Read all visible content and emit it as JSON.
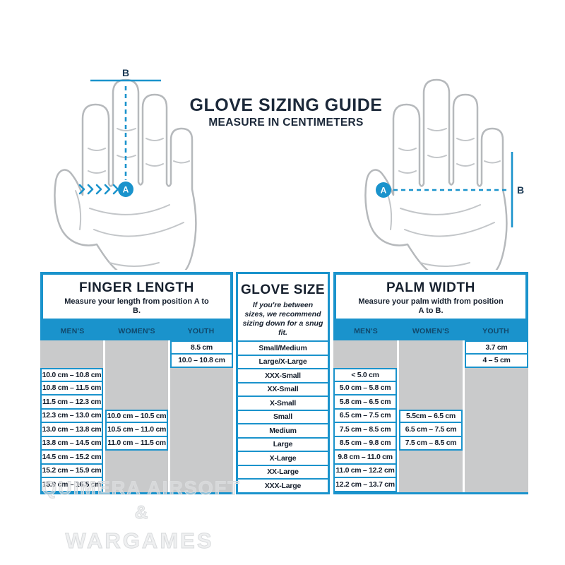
{
  "header": {
    "title": "GLOVE SIZING GUIDE",
    "subtitle": "MEASURE IN CENTIMETERS"
  },
  "diagrams": {
    "left": {
      "point_a": "A",
      "point_b": "B"
    },
    "right": {
      "point_a": "A",
      "point_b": "B"
    }
  },
  "tables": {
    "finger_length": {
      "title": "FINGER LENGTH",
      "subtitle": "Measure your length from position A to B.",
      "columns": [
        "MEN'S",
        "WOMEN'S",
        "YOUTH"
      ],
      "rows": [
        [
          "",
          "",
          "8.5 cm"
        ],
        [
          "",
          "",
          "10.0 – 10.8 cm"
        ],
        [
          "10.0 cm – 10.8 cm",
          "",
          ""
        ],
        [
          "10.8 cm – 11.5 cm",
          "",
          ""
        ],
        [
          "11.5 cm – 12.3 cm",
          "",
          ""
        ],
        [
          "12.3 cm – 13.0 cm",
          "10.0 cm – 10.5 cm",
          ""
        ],
        [
          "13.0 cm – 13.8 cm",
          "10.5 cm – 11.0 cm",
          ""
        ],
        [
          "13.8 cm – 14.5 cm",
          "11.0 cm – 11.5 cm",
          ""
        ],
        [
          "14.5 cm – 15.2 cm",
          "",
          ""
        ],
        [
          "15.2 cm – 15.9 cm",
          "",
          ""
        ],
        [
          "15.9 cm – 16.5 cm",
          "",
          ""
        ]
      ]
    },
    "glove_size": {
      "title": "GLOVE SIZE",
      "subtitle": "If you're between sizes, we recommend sizing down for a snug fit.",
      "sizes": [
        "Small/Medium",
        "Large/X-Large",
        "XXX-Small",
        "XX-Small",
        "X-Small",
        "Small",
        "Medium",
        "Large",
        "X-Large",
        "XX-Large",
        "XXX-Large"
      ]
    },
    "palm_width": {
      "title": "PALM WIDTH",
      "subtitle": "Measure your palm width from position A to B.",
      "columns": [
        "MEN'S",
        "WOMEN'S",
        "YOUTH"
      ],
      "rows": [
        [
          "",
          "",
          "3.7 cm"
        ],
        [
          "",
          "",
          "4 – 5 cm"
        ],
        [
          "< 5.0 cm",
          "",
          ""
        ],
        [
          "5.0 cm – 5.8 cm",
          "",
          ""
        ],
        [
          "5.8 cm – 6.5 cm",
          "",
          ""
        ],
        [
          "6.5 cm – 7.5 cm",
          "5.5cm – 6.5 cm",
          ""
        ],
        [
          "7.5 cm – 8.5 cm",
          "6.5 cm – 7.5 cm",
          ""
        ],
        [
          "8.5 cm – 9.8 cm",
          "7.5 cm – 8.5 cm",
          ""
        ],
        [
          "9.8 cm – 11.0 cm",
          "",
          ""
        ],
        [
          "11.0 cm – 12.2 cm",
          "",
          ""
        ],
        [
          "12.2 cm – 13.7 cm",
          "",
          ""
        ]
      ]
    }
  },
  "watermark": {
    "line1": "QUIMERA AIRSOFT",
    "line2": "&",
    "line3": "WARGAMES"
  },
  "colors": {
    "blue": "#1a93cc",
    "navy": "#1b2839",
    "cell_gray": "#c9cacb",
    "band_label": "#11486b"
  }
}
